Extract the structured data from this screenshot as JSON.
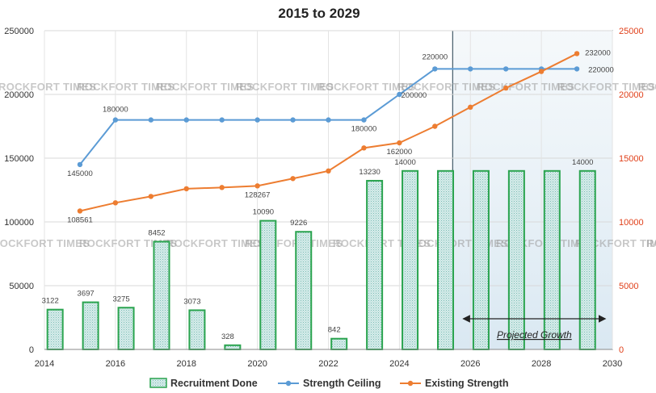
{
  "chart_data": {
    "type": "bar",
    "title": "2015 to 2029",
    "xlabel": "",
    "ylabel": "",
    "xlim": [
      2014,
      2030
    ],
    "ylim_left": [
      0,
      250000
    ],
    "ylim_right": [
      0,
      25000
    ],
    "x_ticks": [
      "2014",
      "2016",
      "2018",
      "2020",
      "2022",
      "2024",
      "2026",
      "2028",
      "2030"
    ],
    "y_ticks_left": [
      "0",
      "50000",
      "100000",
      "150000",
      "200000",
      "250000"
    ],
    "y_ticks_right": [
      "0",
      "5000",
      "10000",
      "15000",
      "20000",
      "25000"
    ],
    "grid": true,
    "legend_position": "bottom",
    "series": [
      {
        "name": "Recruitment Done",
        "type": "bar",
        "axis": "right",
        "color": "#2aa44f",
        "x": [
          2014.3,
          2015.3,
          2016.3,
          2017.3,
          2018.3,
          2019.3,
          2020.3,
          2021.3,
          2022.3,
          2023.3,
          2024.3,
          2025.3,
          2026.3,
          2027.3,
          2028.3,
          2029.3
        ],
        "values": [
          3122,
          3697,
          3275,
          8452,
          3073,
          328,
          10090,
          9226,
          842,
          13230,
          14000,
          14000,
          14000,
          14000,
          14000,
          14000
        ],
        "labels": [
          "3122",
          "3697",
          "3275",
          "8452",
          "3073",
          "328",
          "10090",
          "9226",
          "842",
          "13230",
          "14000",
          "",
          "",
          "",
          "",
          "14000"
        ]
      },
      {
        "name": "Strength Ceiling",
        "type": "line",
        "axis": "left",
        "color": "#5b9bd5",
        "x": [
          2015,
          2016,
          2017,
          2018,
          2019,
          2020,
          2021,
          2022,
          2023,
          2024,
          2025,
          2026,
          2027,
          2028,
          2029
        ],
        "values": [
          145000,
          180000,
          180000,
          180000,
          180000,
          180000,
          180000,
          180000,
          180000,
          200000,
          220000,
          220000,
          220000,
          220000,
          220000
        ],
        "labels": [
          "145000",
          "180000",
          "",
          "",
          "",
          "",
          "",
          "",
          "180000",
          "200000",
          "220000",
          "",
          "",
          "",
          "220000"
        ]
      },
      {
        "name": "Existing Strength",
        "type": "line",
        "axis": "left",
        "color": "#ed7d31",
        "x": [
          2015,
          2016,
          2017,
          2018,
          2019,
          2020,
          2021,
          2022,
          2023,
          2024,
          2025,
          2026,
          2027,
          2028,
          2029
        ],
        "values": [
          108561,
          115000,
          120000,
          126000,
          127000,
          128267,
          134000,
          140000,
          158000,
          162000,
          175000,
          190000,
          205000,
          218000,
          232000
        ],
        "labels": [
          "108561",
          "",
          "",
          "",
          "",
          "128267",
          "",
          "",
          "",
          "162000",
          "",
          "",
          "",
          "",
          "232000"
        ]
      }
    ],
    "annotations": {
      "projected_label": "Projected Growth",
      "projected_range": [
        2025.5,
        2030
      ],
      "watermark": "ROCKFORT TIMES"
    },
    "colors": {
      "bar_fill": "#cfe8e6",
      "bar_edge": "#2aa44f",
      "right_axis": "#e0401a",
      "shade": "#dce9f3"
    }
  }
}
